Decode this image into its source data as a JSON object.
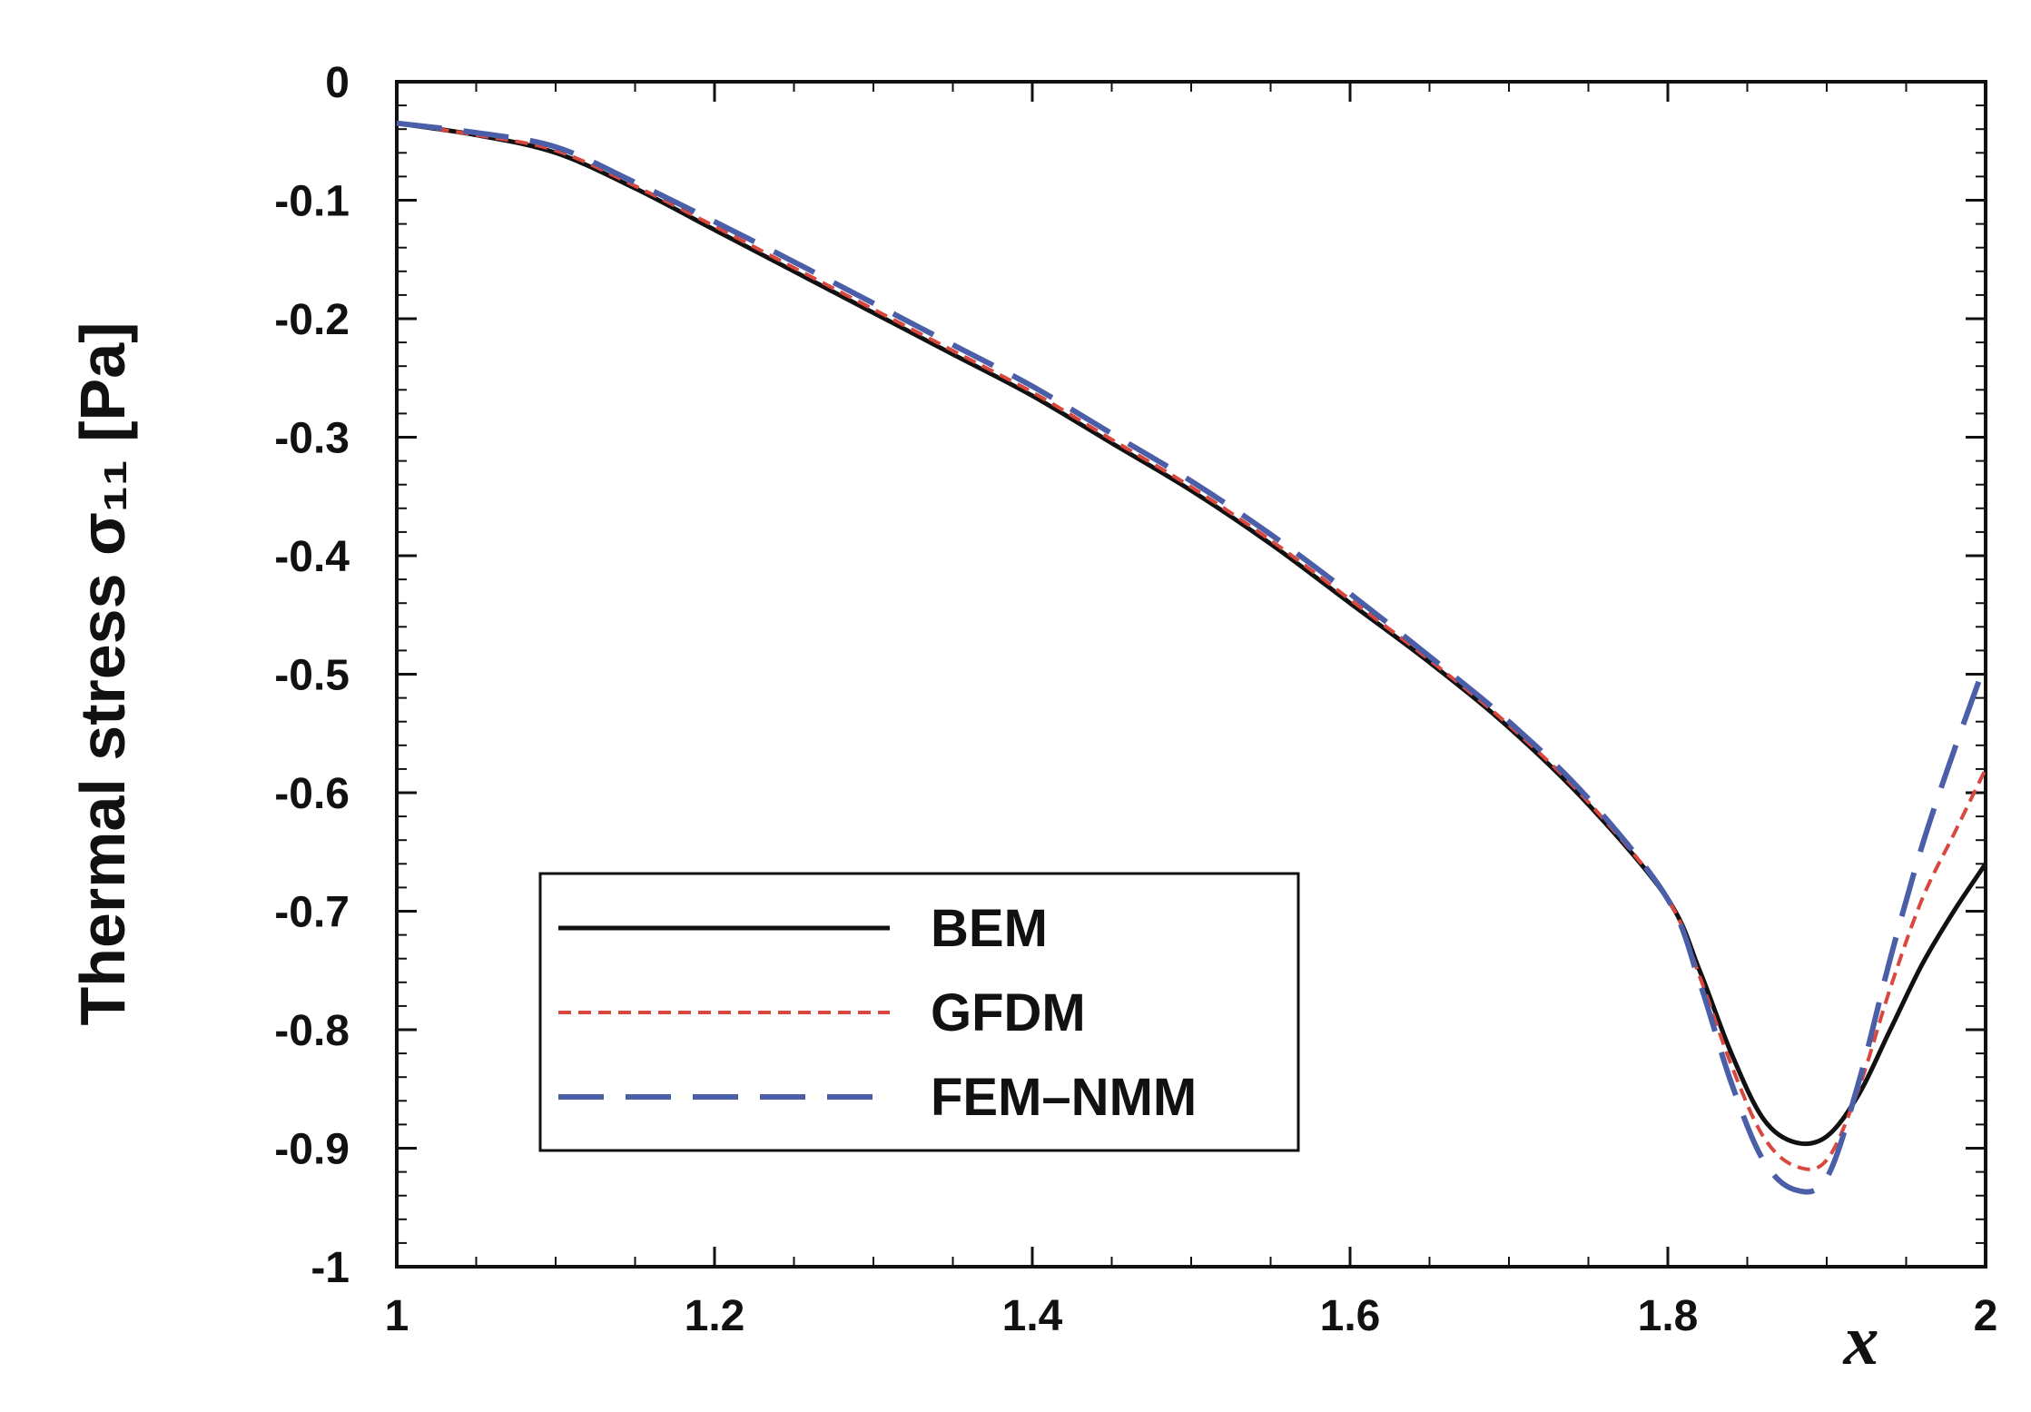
{
  "chart_data": {
    "type": "line",
    "title": "",
    "xlabel": "x",
    "ylabel": "Thermal stress σ₁₁ [Pa]",
    "xlim": [
      1,
      2
    ],
    "ylim": [
      -1,
      0
    ],
    "x_ticks": [
      "1",
      "1.2",
      "1.4",
      "1.6",
      "1.8",
      "2"
    ],
    "y_ticks": [
      "0",
      "-0.1",
      "-0.2",
      "-0.3",
      "-0.4",
      "-0.5",
      "-0.6",
      "-0.7",
      "-0.8",
      "-0.9",
      "-1"
    ],
    "grid": false,
    "legend_position": "bottom-left",
    "series": [
      {
        "name": "BEM",
        "color": "#111111",
        "style": "solid",
        "x": [
          1.0,
          1.05,
          1.1,
          1.15,
          1.2,
          1.25,
          1.3,
          1.35,
          1.4,
          1.45,
          1.5,
          1.55,
          1.6,
          1.65,
          1.7,
          1.75,
          1.8,
          1.82,
          1.84,
          1.86,
          1.88,
          1.9,
          1.92,
          1.94,
          1.96,
          1.98,
          2.0
        ],
        "y": [
          -0.035,
          -0.045,
          -0.06,
          -0.09,
          -0.125,
          -0.16,
          -0.195,
          -0.23,
          -0.265,
          -0.305,
          -0.345,
          -0.39,
          -0.44,
          -0.49,
          -0.545,
          -0.61,
          -0.69,
          -0.75,
          -0.82,
          -0.875,
          -0.895,
          -0.89,
          -0.855,
          -0.8,
          -0.745,
          -0.7,
          -0.66
        ]
      },
      {
        "name": "GFDM",
        "color": "#d9473e",
        "style": "dotted",
        "x": [
          1.0,
          1.05,
          1.1,
          1.15,
          1.2,
          1.25,
          1.3,
          1.35,
          1.4,
          1.45,
          1.5,
          1.55,
          1.6,
          1.65,
          1.7,
          1.75,
          1.8,
          1.82,
          1.84,
          1.86,
          1.88,
          1.9,
          1.92,
          1.94,
          1.96,
          1.98,
          2.0
        ],
        "y": [
          -0.035,
          -0.045,
          -0.058,
          -0.088,
          -0.122,
          -0.157,
          -0.192,
          -0.227,
          -0.262,
          -0.302,
          -0.342,
          -0.387,
          -0.437,
          -0.488,
          -0.543,
          -0.608,
          -0.69,
          -0.755,
          -0.83,
          -0.89,
          -0.915,
          -0.91,
          -0.85,
          -0.765,
          -0.69,
          -0.635,
          -0.58
        ]
      },
      {
        "name": "FEM–NMM",
        "color": "#4a5fa8",
        "style": "dashed",
        "x": [
          1.0,
          1.05,
          1.1,
          1.15,
          1.2,
          1.25,
          1.3,
          1.35,
          1.4,
          1.45,
          1.5,
          1.55,
          1.6,
          1.65,
          1.7,
          1.75,
          1.8,
          1.82,
          1.84,
          1.86,
          1.88,
          1.9,
          1.92,
          1.94,
          1.96,
          1.98,
          2.0
        ],
        "y": [
          -0.035,
          -0.043,
          -0.055,
          -0.085,
          -0.118,
          -0.152,
          -0.187,
          -0.222,
          -0.257,
          -0.297,
          -0.337,
          -0.382,
          -0.432,
          -0.485,
          -0.54,
          -0.605,
          -0.69,
          -0.76,
          -0.845,
          -0.91,
          -0.935,
          -0.925,
          -0.845,
          -0.74,
          -0.645,
          -0.565,
          -0.49
        ]
      }
    ]
  }
}
